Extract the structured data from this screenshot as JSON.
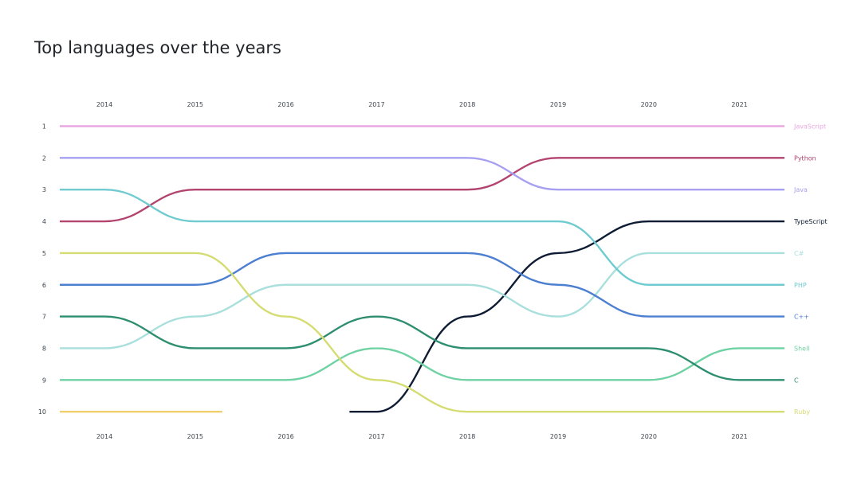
{
  "title": "Top languages over the years",
  "chart_data": {
    "type": "line",
    "subtype": "bump",
    "title": "Top languages over the years",
    "years": [
      "2014",
      "2015",
      "2016",
      "2017",
      "2018",
      "2019",
      "2020",
      "2021"
    ],
    "ranks": [
      "1",
      "2",
      "3",
      "4",
      "5",
      "6",
      "7",
      "8",
      "9",
      "10"
    ],
    "y_reversed": true,
    "grid": false,
    "legend": "right-end-labels",
    "series": [
      {
        "name": "JavaScript",
        "color": "#e9a8e0",
        "ranks": [
          1,
          1,
          1,
          1,
          1,
          1,
          1,
          1
        ]
      },
      {
        "name": "Python",
        "color": "#b3436f",
        "ranks": [
          4,
          3,
          3,
          3,
          3,
          2,
          2,
          2
        ]
      },
      {
        "name": "Java",
        "color": "#a7a0f2",
        "ranks": [
          2,
          2,
          2,
          2,
          2,
          3,
          3,
          3
        ]
      },
      {
        "name": "TypeScript",
        "color": "#0d1b33",
        "ranks": [
          null,
          null,
          null,
          10,
          7,
          5,
          4,
          4
        ]
      },
      {
        "name": "C#",
        "color": "#a9dfdc",
        "ranks": [
          8,
          7,
          6,
          6,
          6,
          7,
          5,
          5
        ]
      },
      {
        "name": "PHP",
        "color": "#6fcbd0",
        "ranks": [
          3,
          4,
          4,
          4,
          4,
          4,
          6,
          6
        ]
      },
      {
        "name": "C++",
        "color": "#4d7fd1",
        "ranks": [
          6,
          6,
          5,
          5,
          5,
          6,
          7,
          7
        ]
      },
      {
        "name": "Shell",
        "color": "#6ed2a3",
        "ranks": [
          9,
          9,
          9,
          8,
          9,
          9,
          9,
          8
        ]
      },
      {
        "name": "C",
        "color": "#2e8e70",
        "ranks": [
          7,
          8,
          8,
          7,
          8,
          8,
          8,
          9
        ]
      },
      {
        "name": "Ruby",
        "color": "#d4dc72",
        "ranks": [
          5,
          5,
          7,
          9,
          10,
          10,
          10,
          10
        ]
      },
      {
        "name": "",
        "color": "#f2cf6e",
        "ranks": [
          10,
          10,
          null,
          null,
          null,
          null,
          null,
          null
        ]
      }
    ]
  }
}
